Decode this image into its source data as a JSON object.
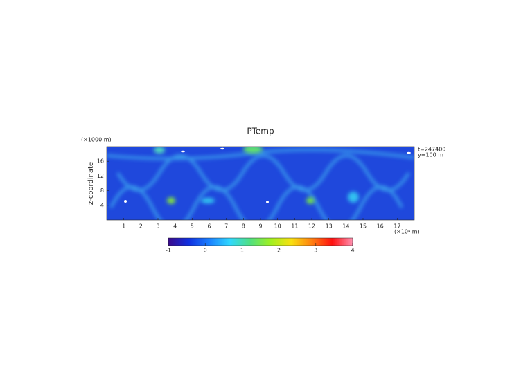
{
  "chart_data": {
    "type": "heatmap",
    "title": "PTemp",
    "y_label": "z-coordinate",
    "y_unit": "(×1000 m)",
    "x_unit": "(×10⁴ m)",
    "annotations": [
      "t=247400",
      "y=100 m"
    ],
    "xlim": [
      0,
      18
    ],
    "xticks": [
      1,
      2,
      3,
      4,
      5,
      6,
      7,
      8,
      9,
      10,
      11,
      12,
      13,
      14,
      15,
      16,
      17
    ],
    "ylim": [
      0,
      20
    ],
    "yticks": [
      4,
      8,
      12,
      16
    ],
    "colorbar": {
      "lim": [
        -1,
        4
      ],
      "ticks": [
        -1,
        0,
        1,
        2,
        3,
        4
      ],
      "colors": [
        "#3a0a8c",
        "#1030e0",
        "#1a80ff",
        "#30d8ff",
        "#50e080",
        "#a0f020",
        "#f8e010",
        "#ff8010",
        "#ff1010",
        "#ff90b0"
      ]
    }
  }
}
